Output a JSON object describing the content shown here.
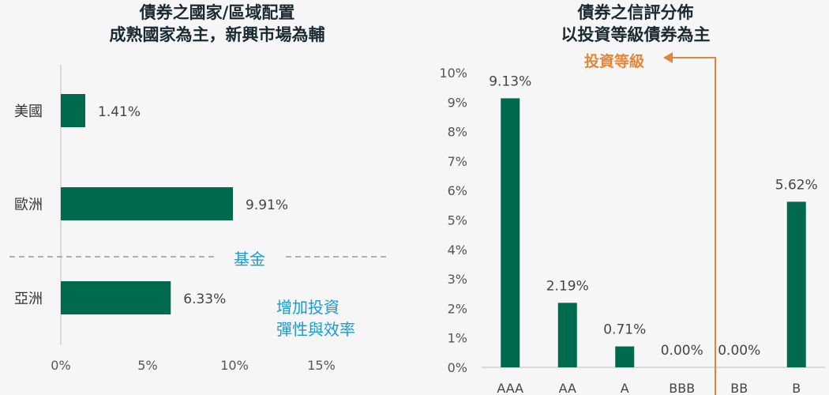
{
  "left_chart": {
    "title_line1": "債券之國家/區域配置",
    "title_line2": "成熟國家為主，新興市場為輔"
  },
  "right_chart": {
    "title_line1": "債券之信評分佈",
    "title_line2": "以投資等級債券為主"
  },
  "annotations": {
    "fund_label": "基金",
    "flex_line1": "增加投資",
    "flex_line2": "彈性與效率",
    "investment_grade": "投資等級"
  },
  "colors": {
    "bar": "#006a4e",
    "accent_blue": "#1b9bd1",
    "accent_orange": "#e2873a",
    "text": "#333333"
  },
  "chart_data": [
    {
      "type": "bar",
      "orientation": "horizontal",
      "title": "債券之國家/區域配置 成熟國家為主，新興市場為輔",
      "categories": [
        "美國",
        "歐洲",
        "亞洲"
      ],
      "values": [
        1.41,
        9.91,
        6.33
      ],
      "data_labels": [
        "1.41%",
        "9.91%",
        "6.33%"
      ],
      "xlim": [
        0,
        15
      ],
      "x_ticks": [
        "0%",
        "5%",
        "10%",
        "15%"
      ],
      "grid": false,
      "legend": "none"
    },
    {
      "type": "bar",
      "orientation": "vertical",
      "title": "債券之信評分佈 以投資等級債券為主",
      "categories": [
        "AAA",
        "AA",
        "A",
        "BBB",
        "BB",
        "B"
      ],
      "values": [
        9.13,
        2.19,
        0.71,
        0.0,
        0.0,
        5.62
      ],
      "data_labels": [
        "9.13%",
        "2.19%",
        "0.71%",
        "0.00%",
        "0.00%",
        "5.62%"
      ],
      "ylim": [
        0,
        10
      ],
      "y_ticks": [
        "0%",
        "1%",
        "2%",
        "3%",
        "4%",
        "5%",
        "6%",
        "7%",
        "8%",
        "9%",
        "10%"
      ],
      "grid": false,
      "legend": "none"
    }
  ]
}
